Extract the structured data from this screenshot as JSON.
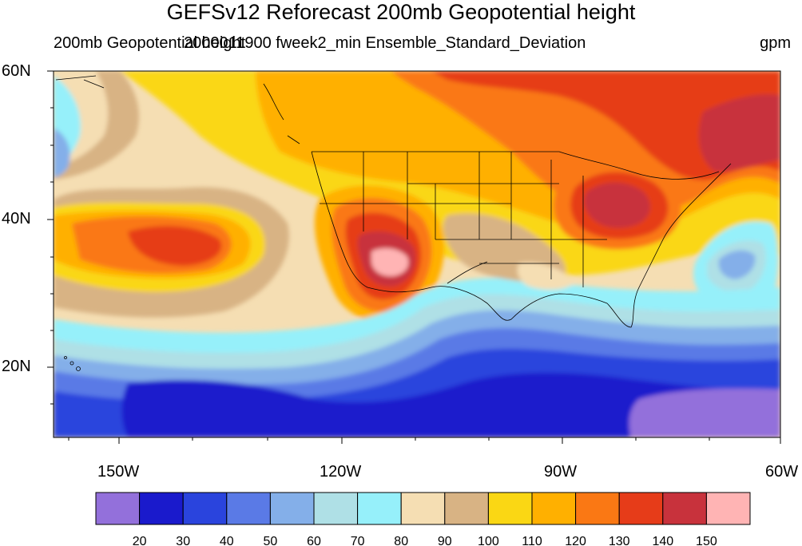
{
  "title": "GEFSv12 Reforecast 200mb Geopotential height",
  "left_subtitle": "200mb Geopotential height",
  "center_subtitle": "2000011900 fweek2_min Ensemble_Standard_Deviation",
  "units": "gpm",
  "lat_labels": [
    "60N",
    "40N",
    "20N"
  ],
  "lon_labels": [
    "150W",
    "120W",
    "90W",
    "60W"
  ],
  "colorbar": {
    "labels": [
      "20",
      "30",
      "40",
      "50",
      "60",
      "70",
      "80",
      "90",
      "100",
      "110",
      "120",
      "130",
      "140",
      "150"
    ],
    "colors": [
      "#9370db",
      "#1a1acc",
      "#2a44dd",
      "#5a7ae6",
      "#84afe9",
      "#afe0e6",
      "#96f0fa",
      "#f5deb3",
      "#d8b384",
      "#fad714",
      "#ffb000",
      "#fa7814",
      "#e63c19",
      "#c8323c",
      "#ffb4b4"
    ]
  },
  "map": {
    "lon_range": [
      -160,
      -60
    ],
    "lat_range": [
      10,
      60
    ],
    "background_color": "#f5deb3"
  }
}
